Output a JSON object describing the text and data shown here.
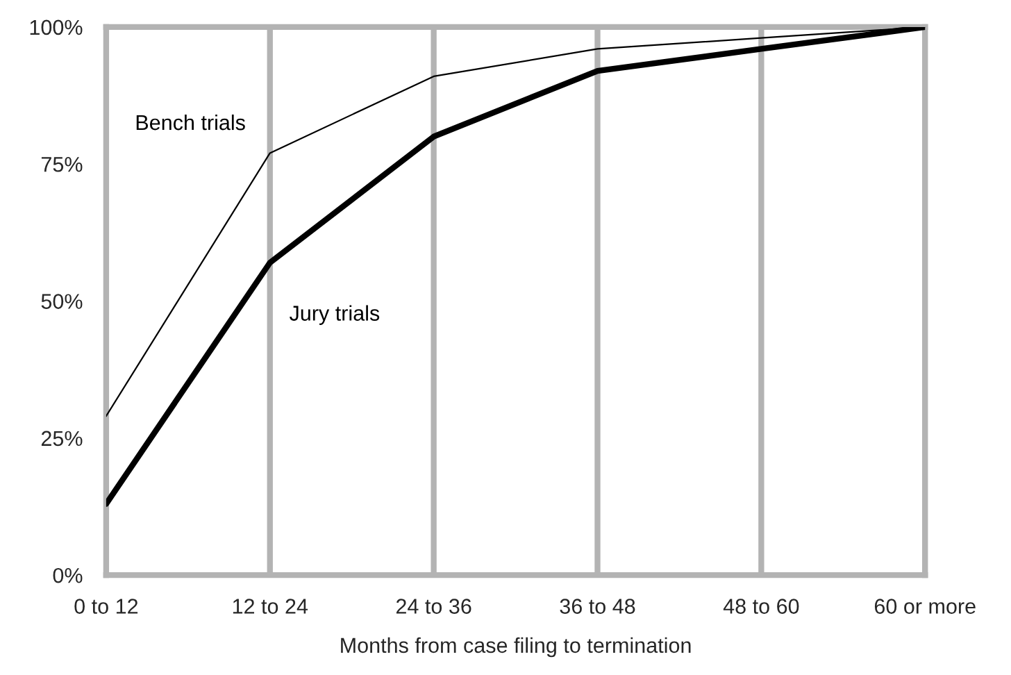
{
  "chart_data": {
    "type": "line",
    "xlabel": "Months from case filing to termination",
    "categories": [
      "0 to 12",
      "12 to 24",
      "24 to 36",
      "36 to 48",
      "48 to 60",
      "60 or more"
    ],
    "series": [
      {
        "name": "Bench trials",
        "color": "#000000",
        "values": [
          29,
          77,
          91,
          96,
          98,
          100
        ]
      },
      {
        "name": "Jury trials",
        "color": "#000000",
        "values": [
          13,
          57,
          80,
          92,
          96,
          100
        ]
      }
    ],
    "ylim": [
      0,
      100
    ],
    "yticks": [
      {
        "value": 0,
        "label": "0%"
      },
      {
        "value": 25,
        "label": "25%"
      },
      {
        "value": 50,
        "label": "50%"
      },
      {
        "value": 75,
        "label": "75%"
      },
      {
        "value": 100,
        "label": "100%"
      }
    ],
    "grid": "x",
    "legend": false,
    "marker": "none",
    "line_style": "solid"
  }
}
